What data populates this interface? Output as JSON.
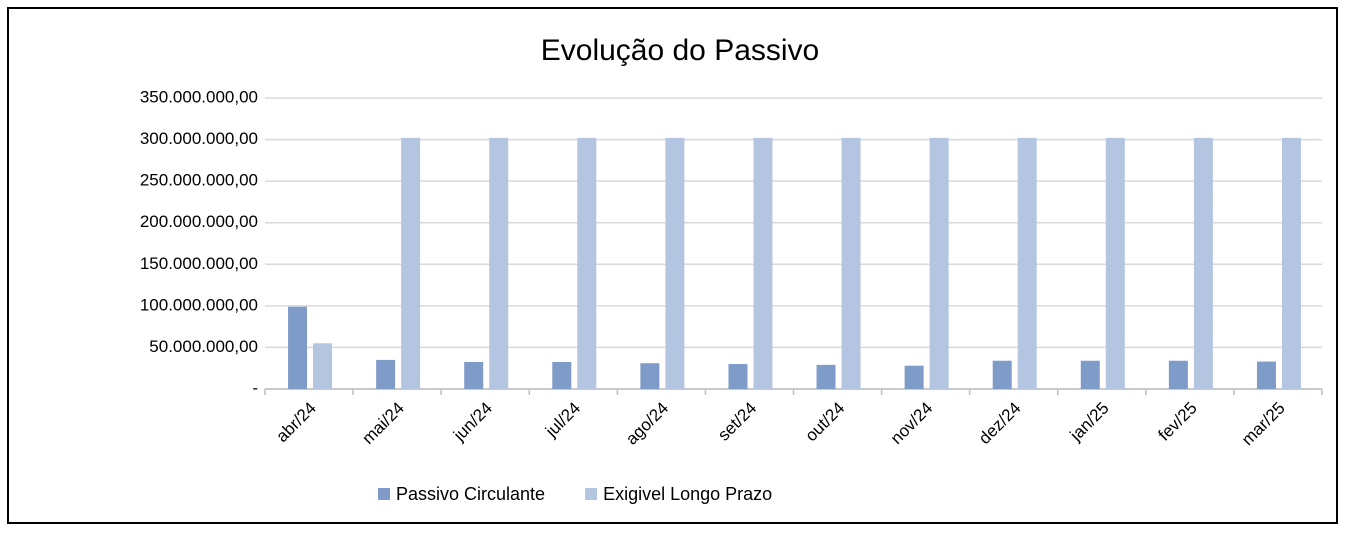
{
  "chart_data": {
    "type": "bar",
    "title": "Evolução do Passivo",
    "categories": [
      "abr/24",
      "mai/24",
      "jun/24",
      "jul/24",
      "ago/24",
      "set/24",
      "out/24",
      "nov/24",
      "dez/24",
      "jan/25",
      "fev/25",
      "mar/25"
    ],
    "series": [
      {
        "name": "Passivo Circulante",
        "color": "#7f9cc9",
        "values": [
          99000000,
          35000000,
          32500000,
          32500000,
          31000000,
          30000000,
          29000000,
          28000000,
          34000000,
          34000000,
          34000000,
          33000000
        ]
      },
      {
        "name": "Exigivel Longo Prazo",
        "color": "#b4c5e1",
        "values": [
          55000000,
          302000000,
          302000000,
          302000000,
          302000000,
          302000000,
          302000000,
          302000000,
          302000000,
          302000000,
          302000000,
          302000000
        ]
      }
    ],
    "ylim": [
      0,
      350000000
    ],
    "yticks": [
      {
        "value": 0,
        "label": "-"
      },
      {
        "value": 50000000,
        "label": "50.000.000,00"
      },
      {
        "value": 100000000,
        "label": "100.000.000,00"
      },
      {
        "value": 150000000,
        "label": "150.000.000,00"
      },
      {
        "value": 200000000,
        "label": "200.000.000,00"
      },
      {
        "value": 250000000,
        "label": "250.000.000,00"
      },
      {
        "value": 300000000,
        "label": "300.000.000,00"
      },
      {
        "value": 350000000,
        "label": "350.000.000,00"
      }
    ],
    "grid": true,
    "legend": "bottom"
  }
}
